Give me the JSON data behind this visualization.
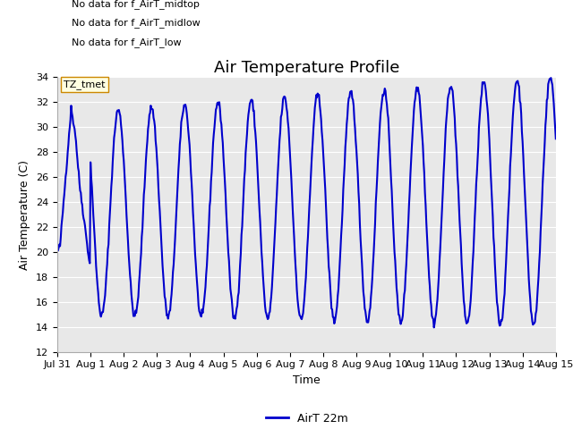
{
  "title": "Air Temperature Profile",
  "xlabel": "Time",
  "ylabel": "Air Temperature (C)",
  "ylim": [
    12,
    34
  ],
  "yticks": [
    12,
    14,
    16,
    18,
    20,
    22,
    24,
    26,
    28,
    30,
    32,
    34
  ],
  "line_color": "#0000cc",
  "line_width": 1.5,
  "legend_label": "AirT 22m",
  "background_color": "#ffffff",
  "plot_bg_color": "#e8e8e8",
  "annotations": [
    "No data for f_AirT_low",
    "No data for f_AirT_midlow",
    "No data for f_AirT_midtop"
  ],
  "tz_label": "TZ_tmet",
  "x_tick_labels": [
    "Jul 31",
    "Aug 1",
    "Aug 2",
    "Aug 3",
    "Aug 4",
    "Aug 5",
    "Aug 6",
    "Aug 7",
    "Aug 8",
    "Aug 9",
    "Aug 10",
    "Aug 11",
    "Aug 12",
    "Aug 13",
    "Aug 14",
    "Aug 15"
  ],
  "title_fontsize": 13,
  "axis_fontsize": 9,
  "tick_fontsize": 8,
  "ann_fontsize": 8
}
